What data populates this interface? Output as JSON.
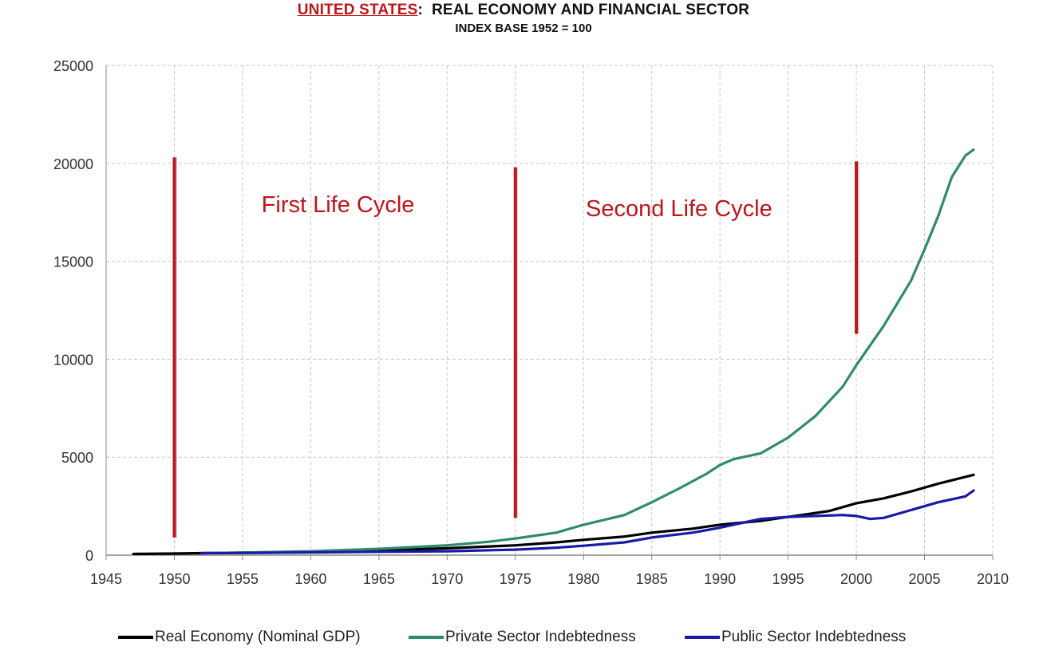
{
  "title": {
    "country": "UNITED STATES",
    "separator": ":",
    "main": "REAL ECONOMY AND FINANCIAL SECTOR",
    "subtitle": "INDEX BASE 1952 = 100"
  },
  "annotations": [
    {
      "text": "First Life Cycle",
      "x": 1962,
      "y": 17500
    },
    {
      "text": "Second Life Cycle",
      "x": 1987,
      "y": 17300
    }
  ],
  "life_cycle_markers": [
    {
      "x": 1950,
      "y_bottom": 900,
      "y_top": 20300
    },
    {
      "x": 1975,
      "y_bottom": 1900,
      "y_top": 19800
    },
    {
      "x": 2000,
      "y_bottom": 11300,
      "y_top": 20100
    }
  ],
  "colors": {
    "real_economy": "#000000",
    "private_sector": "#2e8b6e",
    "public_sector": "#1a1aa8",
    "markers": "#c0141b",
    "annotation_text": "#c0141b",
    "grid": "#c8c8c8",
    "axis": "#888888"
  },
  "chart_data": {
    "type": "line",
    "title": "UNITED STATES: REAL ECONOMY AND FINANCIAL SECTOR",
    "subtitle": "INDEX BASE 1952 = 100",
    "xlim": [
      1945,
      2010
    ],
    "ylim": [
      0,
      25000
    ],
    "xticks": [
      1945,
      1950,
      1955,
      1960,
      1965,
      1970,
      1975,
      1980,
      1985,
      1990,
      1995,
      2000,
      2005,
      2010
    ],
    "yticks": [
      0,
      5000,
      10000,
      15000,
      20000,
      25000
    ],
    "grid": true,
    "legend_position": "bottom",
    "series": [
      {
        "name": "Real Economy (Nominal GDP)",
        "color": "#000000",
        "x": [
          1947,
          1950,
          1952,
          1955,
          1960,
          1965,
          1970,
          1975,
          1978,
          1980,
          1983,
          1985,
          1988,
          1990,
          1993,
          1995,
          1998,
          2000,
          2002,
          2004,
          2006,
          2008.6
        ],
        "y": [
          60,
          80,
          100,
          130,
          180,
          250,
          350,
          500,
          650,
          780,
          950,
          1150,
          1350,
          1550,
          1750,
          1950,
          2250,
          2650,
          2900,
          3250,
          3650,
          4100
        ]
      },
      {
        "name": "Private Sector Indebtedness",
        "color": "#2e8b6e",
        "x": [
          1952,
          1955,
          1960,
          1965,
          1970,
          1973,
          1975,
          1978,
          1980,
          1983,
          1985,
          1987,
          1989,
          1990,
          1991,
          1993,
          1995,
          1997,
          1999,
          2000,
          2002,
          2004,
          2005,
          2006,
          2007,
          2008,
          2008.6
        ],
        "y": [
          100,
          130,
          200,
          320,
          500,
          680,
          850,
          1150,
          1550,
          2050,
          2700,
          3400,
          4150,
          4600,
          4900,
          5200,
          6000,
          7100,
          8600,
          9700,
          11700,
          14000,
          15600,
          17300,
          19300,
          20400,
          20700
        ]
      },
      {
        "name": "Public Sector Indebtedness",
        "color": "#1a1aa8",
        "x": [
          1952,
          1955,
          1960,
          1965,
          1970,
          1975,
          1978,
          1980,
          1983,
          1985,
          1988,
          1990,
          1992,
          1993,
          1995,
          1997,
          1999,
          2000,
          2001,
          2002,
          2004,
          2006,
          2008,
          2008.6
        ],
        "y": [
          100,
          110,
          140,
          170,
          200,
          280,
          380,
          480,
          650,
          900,
          1150,
          1400,
          1700,
          1850,
          1950,
          2000,
          2050,
          2000,
          1850,
          1900,
          2300,
          2700,
          3000,
          3300
        ]
      }
    ]
  }
}
